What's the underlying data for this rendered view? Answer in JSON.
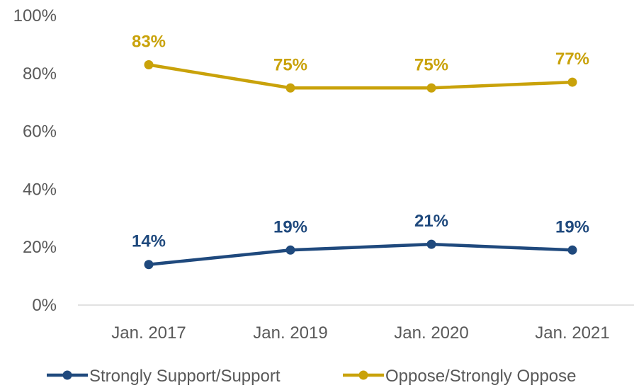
{
  "chart_data": {
    "type": "line",
    "categories": [
      "Jan. 2017",
      "Jan. 2019",
      "Jan. 2020",
      "Jan. 2021"
    ],
    "series": [
      {
        "name": "Strongly Support/Support",
        "color": "#1f497d",
        "values": [
          14,
          19,
          21,
          19
        ],
        "labels": [
          "14%",
          "19%",
          "21%",
          "19%"
        ]
      },
      {
        "name": "Oppose/Strongly Oppose",
        "color": "#c9a20a",
        "values": [
          83,
          75,
          75,
          77
        ],
        "labels": [
          "83%",
          "75%",
          "75%",
          "77%"
        ]
      }
    ],
    "ylim": [
      0,
      100
    ],
    "y_ticks": [
      0,
      20,
      40,
      60,
      80,
      100
    ],
    "y_tick_labels": [
      "0%",
      "20%",
      "40%",
      "60%",
      "80%",
      "100%"
    ],
    "grid": false,
    "legend_position": "bottom",
    "axis_color": "#d9d9d9",
    "text_color": "#595959"
  }
}
